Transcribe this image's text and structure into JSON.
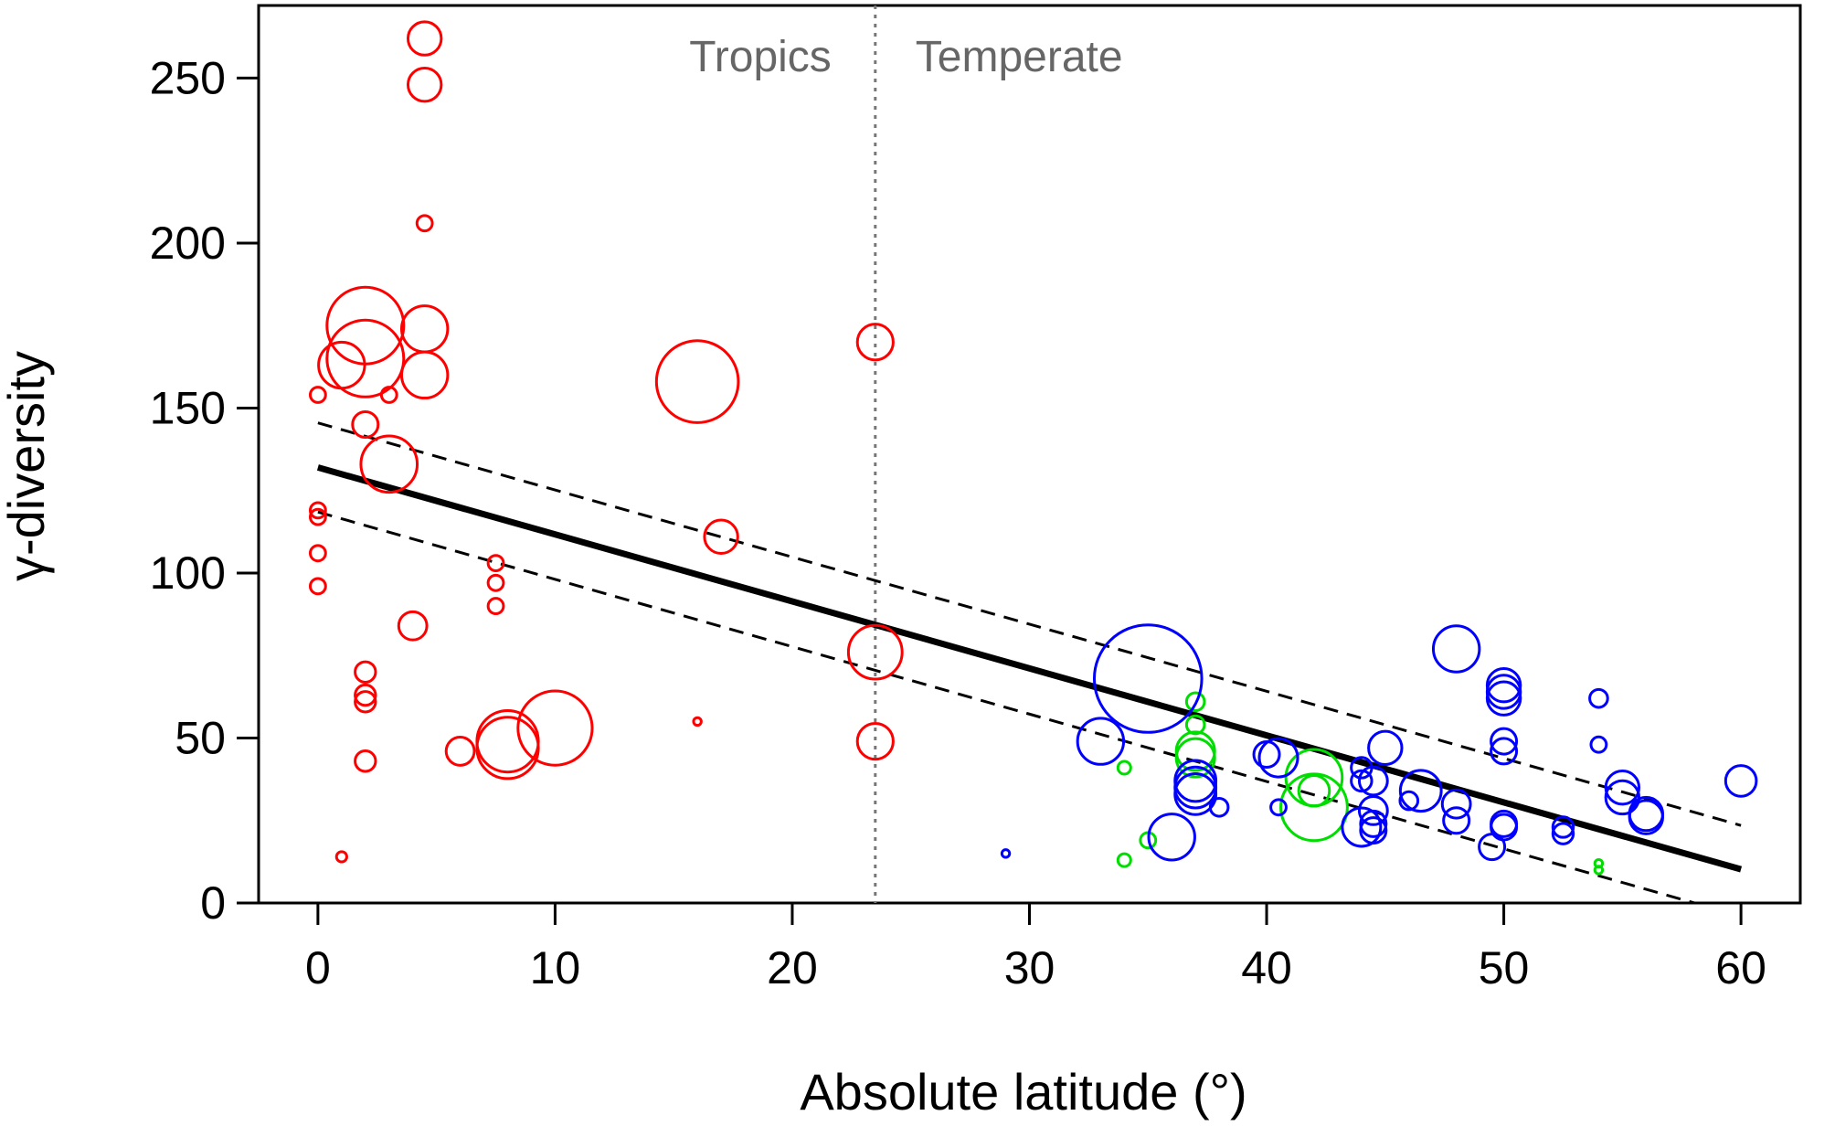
{
  "chart_data": {
    "type": "scatter",
    "xlabel": "Absolute latitude (°)",
    "ylabel": "γ-diversity",
    "xlim": [
      -2.5,
      62.5
    ],
    "ylim": [
      0,
      272
    ],
    "xticks": [
      0,
      10,
      20,
      30,
      40,
      50,
      60
    ],
    "yticks": [
      0,
      50,
      100,
      150,
      200,
      250
    ],
    "grid": false,
    "legend": "none",
    "divider": {
      "x": 23.5,
      "left_label": "Tropics",
      "right_label": "Temperate",
      "style": "dotted",
      "color": "#777777"
    },
    "regression": {
      "intercept": 132,
      "slope": -2.03,
      "x_range": [
        0,
        60
      ],
      "color": "#000000"
    },
    "confidence_band": {
      "upper": {
        "at_x0": 145.5,
        "at_x60": 23.5
      },
      "lower": {
        "at_x0": 118.5,
        "at_x60": -4
      },
      "style": "dashed"
    },
    "colors": {
      "red_group": "#ff0000",
      "green_group": "#00dd00",
      "blue_group": "#0000ff"
    },
    "point_size_note": "circle radius reflects relative marker size",
    "series": [
      {
        "color": "#ff0000",
        "points": [
          {
            "x": 4.5,
            "y": 262,
            "size": 1.3
          },
          {
            "x": 4.5,
            "y": 248,
            "size": 1.3
          },
          {
            "x": 4.5,
            "y": 206,
            "size": 0.6
          },
          {
            "x": 2,
            "y": 175,
            "size": 3.0
          },
          {
            "x": 4.5,
            "y": 174,
            "size": 1.8
          },
          {
            "x": 2,
            "y": 165,
            "size": 3.0
          },
          {
            "x": 1,
            "y": 163,
            "size": 1.8
          },
          {
            "x": 4.5,
            "y": 160,
            "size": 1.8
          },
          {
            "x": 0,
            "y": 154,
            "size": 0.6
          },
          {
            "x": 3,
            "y": 154,
            "size": 0.6
          },
          {
            "x": 2,
            "y": 145,
            "size": 1.0
          },
          {
            "x": 3,
            "y": 133,
            "size": 2.2
          },
          {
            "x": 0,
            "y": 119,
            "size": 0.6
          },
          {
            "x": 0,
            "y": 117,
            "size": 0.6
          },
          {
            "x": 0,
            "y": 106,
            "size": 0.6
          },
          {
            "x": 0,
            "y": 96,
            "size": 0.6
          },
          {
            "x": 7.5,
            "y": 103,
            "size": 0.6
          },
          {
            "x": 7.5,
            "y": 97,
            "size": 0.6
          },
          {
            "x": 7.5,
            "y": 90,
            "size": 0.6
          },
          {
            "x": 4,
            "y": 84,
            "size": 1.1
          },
          {
            "x": 2,
            "y": 70,
            "size": 0.8
          },
          {
            "x": 2,
            "y": 63,
            "size": 0.8
          },
          {
            "x": 2,
            "y": 61,
            "size": 0.8
          },
          {
            "x": 2,
            "y": 43,
            "size": 0.8
          },
          {
            "x": 1,
            "y": 14,
            "size": 0.4
          },
          {
            "x": 6,
            "y": 46,
            "size": 1.1
          },
          {
            "x": 8,
            "y": 49,
            "size": 2.4
          },
          {
            "x": 8,
            "y": 47,
            "size": 2.4
          },
          {
            "x": 10,
            "y": 53,
            "size": 2.9
          },
          {
            "x": 16,
            "y": 158,
            "size": 3.2
          },
          {
            "x": 17,
            "y": 111,
            "size": 1.3
          },
          {
            "x": 23.5,
            "y": 170,
            "size": 1.4
          },
          {
            "x": 23.5,
            "y": 76,
            "size": 2.1
          },
          {
            "x": 23.5,
            "y": 49,
            "size": 1.4
          },
          {
            "x": 16,
            "y": 55,
            "size": 0.3
          }
        ]
      },
      {
        "color": "#00dd00",
        "points": [
          {
            "x": 37,
            "y": 61,
            "size": 0.7
          },
          {
            "x": 37,
            "y": 54,
            "size": 0.7
          },
          {
            "x": 37,
            "y": 46,
            "size": 1.5
          },
          {
            "x": 37,
            "y": 44,
            "size": 1.5
          },
          {
            "x": 34,
            "y": 41,
            "size": 0.5
          },
          {
            "x": 42,
            "y": 38,
            "size": 2.2
          },
          {
            "x": 42,
            "y": 34,
            "size": 1.2
          },
          {
            "x": 42,
            "y": 29,
            "size": 2.6
          },
          {
            "x": 35,
            "y": 19,
            "size": 0.6
          },
          {
            "x": 34,
            "y": 13,
            "size": 0.5
          },
          {
            "x": 54,
            "y": 12,
            "size": 0.3
          },
          {
            "x": 54,
            "y": 10,
            "size": 0.3
          }
        ]
      },
      {
        "color": "#0000ff",
        "points": [
          {
            "x": 35,
            "y": 68,
            "size": 4.2
          },
          {
            "x": 33,
            "y": 49,
            "size": 1.8
          },
          {
            "x": 36,
            "y": 20,
            "size": 1.8
          },
          {
            "x": 29,
            "y": 15,
            "size": 0.3
          },
          {
            "x": 37,
            "y": 37,
            "size": 1.6
          },
          {
            "x": 37,
            "y": 35,
            "size": 1.6
          },
          {
            "x": 37,
            "y": 33,
            "size": 1.6
          },
          {
            "x": 38,
            "y": 29,
            "size": 0.7
          },
          {
            "x": 40,
            "y": 45,
            "size": 1.0
          },
          {
            "x": 40.5,
            "y": 44,
            "size": 1.5
          },
          {
            "x": 40.5,
            "y": 29,
            "size": 0.6
          },
          {
            "x": 44,
            "y": 41,
            "size": 0.8
          },
          {
            "x": 44,
            "y": 37,
            "size": 0.8
          },
          {
            "x": 44.5,
            "y": 37,
            "size": 1.1
          },
          {
            "x": 44.5,
            "y": 28,
            "size": 1.1
          },
          {
            "x": 44.5,
            "y": 24,
            "size": 1.0
          },
          {
            "x": 44.5,
            "y": 22,
            "size": 1.0
          },
          {
            "x": 44,
            "y": 23,
            "size": 1.5
          },
          {
            "x": 45,
            "y": 47,
            "size": 1.3
          },
          {
            "x": 46.5,
            "y": 34,
            "size": 1.6
          },
          {
            "x": 46,
            "y": 31,
            "size": 0.7
          },
          {
            "x": 48,
            "y": 77,
            "size": 1.8
          },
          {
            "x": 48,
            "y": 30,
            "size": 1.1
          },
          {
            "x": 48,
            "y": 25,
            "size": 1.0
          },
          {
            "x": 49.5,
            "y": 17,
            "size": 1.0
          },
          {
            "x": 50,
            "y": 66,
            "size": 1.3
          },
          {
            "x": 50,
            "y": 64,
            "size": 1.3
          },
          {
            "x": 50,
            "y": 62,
            "size": 1.3
          },
          {
            "x": 50,
            "y": 49,
            "size": 1.0
          },
          {
            "x": 50,
            "y": 46,
            "size": 1.0
          },
          {
            "x": 50,
            "y": 24,
            "size": 1.0
          },
          {
            "x": 50,
            "y": 23,
            "size": 1.0
          },
          {
            "x": 52.5,
            "y": 23,
            "size": 0.8
          },
          {
            "x": 52.5,
            "y": 21,
            "size": 0.8
          },
          {
            "x": 54,
            "y": 62,
            "size": 0.7
          },
          {
            "x": 54,
            "y": 48,
            "size": 0.6
          },
          {
            "x": 55,
            "y": 35,
            "size": 1.3
          },
          {
            "x": 55,
            "y": 32,
            "size": 1.3
          },
          {
            "x": 56,
            "y": 27,
            "size": 1.3
          },
          {
            "x": 56,
            "y": 26,
            "size": 1.3
          },
          {
            "x": 60,
            "y": 37,
            "size": 1.2
          }
        ]
      }
    ]
  }
}
